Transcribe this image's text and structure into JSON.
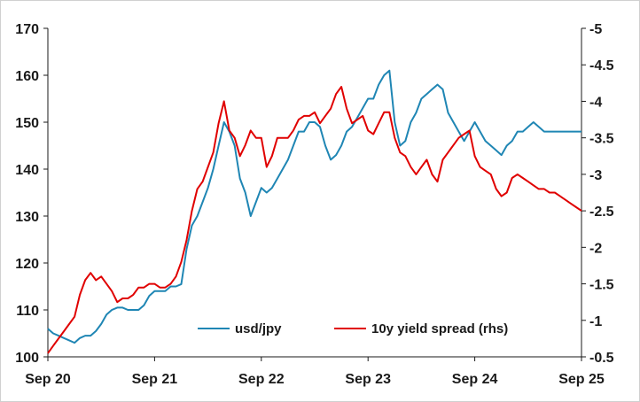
{
  "chart_data": {
    "type": "line",
    "title": "",
    "xlabel": "",
    "ylabel": "",
    "y2label": "",
    "x_ticks": [
      "Sep 20",
      "Sep 21",
      "Sep 22",
      "Sep 23",
      "Sep 24",
      "Sep 25"
    ],
    "xlim": [
      "Sep 20",
      "Sep 25"
    ],
    "ylim": [
      100,
      170
    ],
    "y_ticks": [
      "100",
      "110",
      "120",
      "130",
      "140",
      "150",
      "160",
      "170"
    ],
    "y2lim": [
      -0.5,
      -5
    ],
    "y2_inverted": true,
    "y2_ticks": [
      "-0.5",
      "-1",
      "-1.5",
      "-2",
      "-2.5",
      "-3",
      "-3.5",
      "-4",
      "-4.5",
      "-5"
    ],
    "grid": false,
    "legend_position": "bottom-center",
    "series": [
      {
        "name": "usd/jpy",
        "axis": "left",
        "color": "#1f86b4",
        "x": [
          0,
          0.05,
          0.1,
          0.15,
          0.2,
          0.25,
          0.3,
          0.35,
          0.4,
          0.45,
          0.5,
          0.55,
          0.6,
          0.65,
          0.7,
          0.75,
          0.8,
          0.85,
          0.9,
          0.95,
          1.0,
          1.05,
          1.1,
          1.15,
          1.2,
          1.25,
          1.3,
          1.35,
          1.4,
          1.45,
          1.5,
          1.55,
          1.6,
          1.65,
          1.7,
          1.75,
          1.8,
          1.85,
          1.9,
          1.95,
          2.0,
          2.05,
          2.1,
          2.15,
          2.2,
          2.25,
          2.3,
          2.35,
          2.4,
          2.45,
          2.5,
          2.55,
          2.6,
          2.65,
          2.7,
          2.75,
          2.8,
          2.85,
          2.9,
          2.95,
          3.0,
          3.05,
          3.1,
          3.15,
          3.2,
          3.25,
          3.3,
          3.35,
          3.4,
          3.45,
          3.5,
          3.55,
          3.6,
          3.65,
          3.7,
          3.75,
          3.8,
          3.85,
          3.9,
          3.95,
          4.0,
          4.05,
          4.1,
          4.15,
          4.2,
          4.25,
          4.3,
          4.35,
          4.4,
          4.45,
          4.5,
          4.55,
          4.6,
          4.65,
          4.7,
          4.75,
          4.8,
          4.85,
          4.9,
          4.95,
          5.0
        ],
        "values": [
          106,
          105,
          104.5,
          104,
          103.5,
          103,
          104,
          104.5,
          104.5,
          105.5,
          107,
          109,
          110,
          110.5,
          110.5,
          110,
          110,
          110,
          111,
          113,
          114,
          114,
          114,
          115,
          115,
          115.5,
          123,
          128,
          130,
          133,
          136,
          140,
          145,
          150,
          148,
          145,
          138,
          135,
          130,
          133,
          136,
          135,
          136,
          138,
          140,
          142,
          145,
          148,
          148,
          150,
          150,
          149,
          145,
          142,
          143,
          145,
          148,
          149,
          151,
          153,
          155,
          155,
          158,
          160,
          161,
          150,
          145,
          146,
          150,
          152,
          155,
          156,
          157,
          158,
          157,
          152,
          150,
          148,
          146,
          148,
          150,
          148,
          146,
          145,
          144,
          143,
          145,
          146,
          148,
          148,
          149,
          150,
          149,
          148,
          148,
          148,
          148,
          148,
          148,
          148,
          148
        ]
      },
      {
        "name": "10y yield spread (rhs)",
        "axis": "right",
        "color": "#e00000",
        "x": [
          0,
          0.05,
          0.1,
          0.15,
          0.2,
          0.25,
          0.3,
          0.35,
          0.4,
          0.45,
          0.5,
          0.55,
          0.6,
          0.65,
          0.7,
          0.75,
          0.8,
          0.85,
          0.9,
          0.95,
          1.0,
          1.05,
          1.1,
          1.15,
          1.2,
          1.25,
          1.3,
          1.35,
          1.4,
          1.45,
          1.5,
          1.55,
          1.6,
          1.65,
          1.7,
          1.75,
          1.8,
          1.85,
          1.9,
          1.95,
          2.0,
          2.05,
          2.1,
          2.15,
          2.2,
          2.25,
          2.3,
          2.35,
          2.4,
          2.45,
          2.5,
          2.55,
          2.6,
          2.65,
          2.7,
          2.75,
          2.8,
          2.85,
          2.9,
          2.95,
          3.0,
          3.05,
          3.1,
          3.15,
          3.2,
          3.25,
          3.3,
          3.35,
          3.4,
          3.45,
          3.5,
          3.55,
          3.6,
          3.65,
          3.7,
          3.75,
          3.8,
          3.85,
          3.9,
          3.95,
          4.0,
          4.05,
          4.1,
          4.15,
          4.2,
          4.25,
          4.3,
          4.35,
          4.4,
          4.45,
          4.5,
          4.55,
          4.6,
          4.65,
          4.7,
          4.75,
          4.8,
          4.85,
          4.9,
          4.95,
          5.0
        ],
        "values": [
          -0.55,
          -0.65,
          -0.75,
          -0.85,
          -0.95,
          -1.05,
          -1.35,
          -1.55,
          -1.65,
          -1.55,
          -1.6,
          -1.5,
          -1.4,
          -1.25,
          -1.3,
          -1.3,
          -1.35,
          -1.45,
          -1.45,
          -1.5,
          -1.5,
          -1.45,
          -1.45,
          -1.5,
          -1.6,
          -1.8,
          -2.1,
          -2.5,
          -2.8,
          -2.9,
          -3.1,
          -3.3,
          -3.7,
          -4.0,
          -3.6,
          -3.5,
          -3.25,
          -3.4,
          -3.6,
          -3.5,
          -3.5,
          -3.1,
          -3.25,
          -3.5,
          -3.5,
          -3.5,
          -3.6,
          -3.75,
          -3.8,
          -3.8,
          -3.85,
          -3.7,
          -3.8,
          -3.9,
          -4.1,
          -4.2,
          -3.9,
          -3.7,
          -3.75,
          -3.8,
          -3.6,
          -3.55,
          -3.7,
          -3.85,
          -3.85,
          -3.5,
          -3.3,
          -3.25,
          -3.1,
          -3.0,
          -3.1,
          -3.2,
          -3.0,
          -2.9,
          -3.2,
          -3.3,
          -3.4,
          -3.5,
          -3.55,
          -3.6,
          -3.25,
          -3.1,
          -3.05,
          -3.0,
          -2.8,
          -2.7,
          -2.75,
          -2.95,
          -3.0,
          -2.95,
          -2.9,
          -2.85,
          -2.8,
          -2.8,
          -2.75,
          -2.75,
          -2.7,
          -2.65,
          -2.6,
          -2.55,
          -2.5
        ]
      }
    ]
  },
  "colors": {
    "axis": "#1a1a1a",
    "usdjpy": "#1f86b4",
    "spread": "#e00000"
  }
}
